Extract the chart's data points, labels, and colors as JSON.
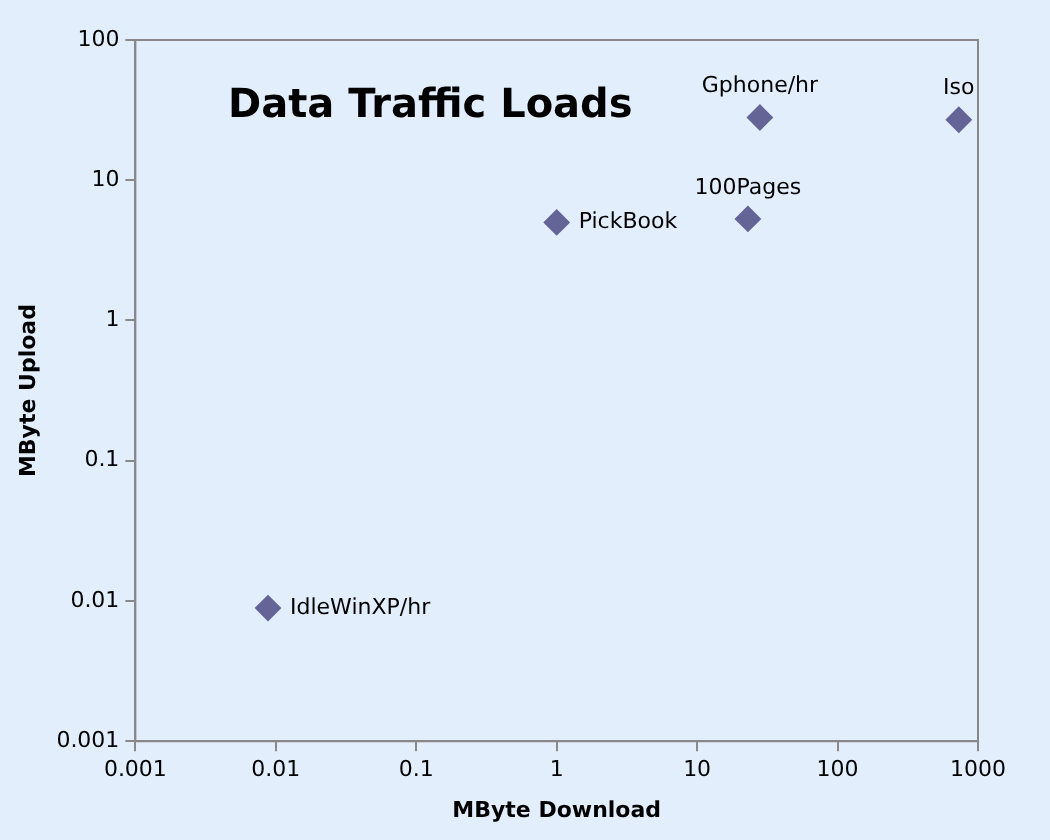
{
  "chart_data": {
    "type": "scatter",
    "title": "Data Traffic Loads",
    "xlabel": "MByte Download",
    "ylabel": "MByte Upload",
    "log": "xy",
    "x": [
      0.0088,
      1.0,
      23,
      28,
      730
    ],
    "series": [
      {
        "color": "#646496",
        "values": [
          0.0089,
          5.0,
          5.3,
          28,
          27
        ]
      }
    ],
    "xlim": [
      0.001,
      1000
    ],
    "xticks": [
      0.001,
      0.01,
      0.1,
      1,
      10,
      100,
      1000
    ],
    "ylim": [
      0.001,
      100
    ],
    "yticks": [
      0.001,
      0.01,
      0.1,
      1,
      10,
      100
    ],
    "marker": "diamond",
    "grid": false,
    "legend": false,
    "annotations": [
      {
        "text": "IdleWinXP/hr",
        "x": 0.0088,
        "y": 0.0089
      },
      {
        "text": "PickBook",
        "x": 1.0,
        "y": 5.0
      },
      {
        "text": "100Pages",
        "x": 23,
        "y": 5.3
      },
      {
        "text": "Gphone/hr",
        "x": 28,
        "y": 28
      },
      {
        "text": "Iso",
        "x": 730,
        "y": 27
      }
    ]
  }
}
